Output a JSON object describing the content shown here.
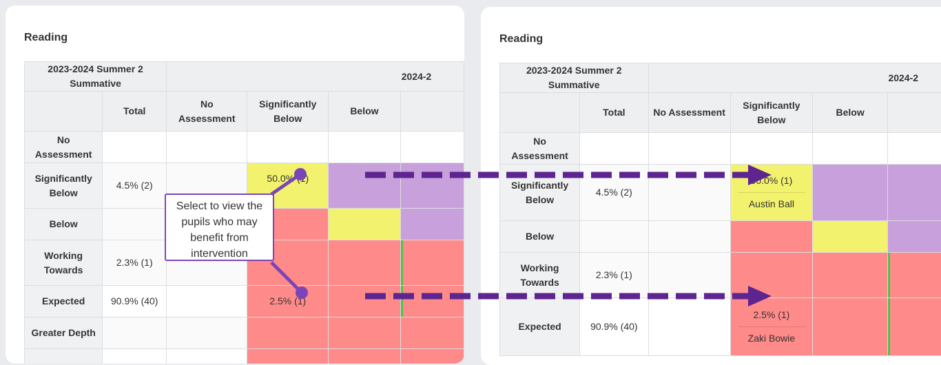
{
  "section_title": "Reading",
  "prior_header": "2023-2024 Summer 2 Summative",
  "current_header": "2024-2",
  "columns": [
    "Total",
    "No Assessment",
    "Significantly Below",
    "Below"
  ],
  "rows": [
    {
      "label": "No Assessment",
      "total": ""
    },
    {
      "label": "Significantly Below",
      "total": "4.5% (2)",
      "sig_below": "50.0% (1)",
      "pupil": "Austin Ball"
    },
    {
      "label": "Below",
      "total": ""
    },
    {
      "label": "Working Towards",
      "total": "2.3% (1)"
    },
    {
      "label": "Expected",
      "total": "90.9% (40)",
      "sig_below": "2.5% (1)",
      "pupil": "Zaki Bowie"
    },
    {
      "label": "Greater Depth",
      "total": ""
    }
  ],
  "callout": "Select to view the pupils who may benefit from intervention",
  "colors": {
    "yellow": "#f2f26e",
    "purple": "#c8a0dc",
    "red": "#ff8a8a",
    "green": "#4cc24c",
    "annotation": "#5e2590"
  }
}
